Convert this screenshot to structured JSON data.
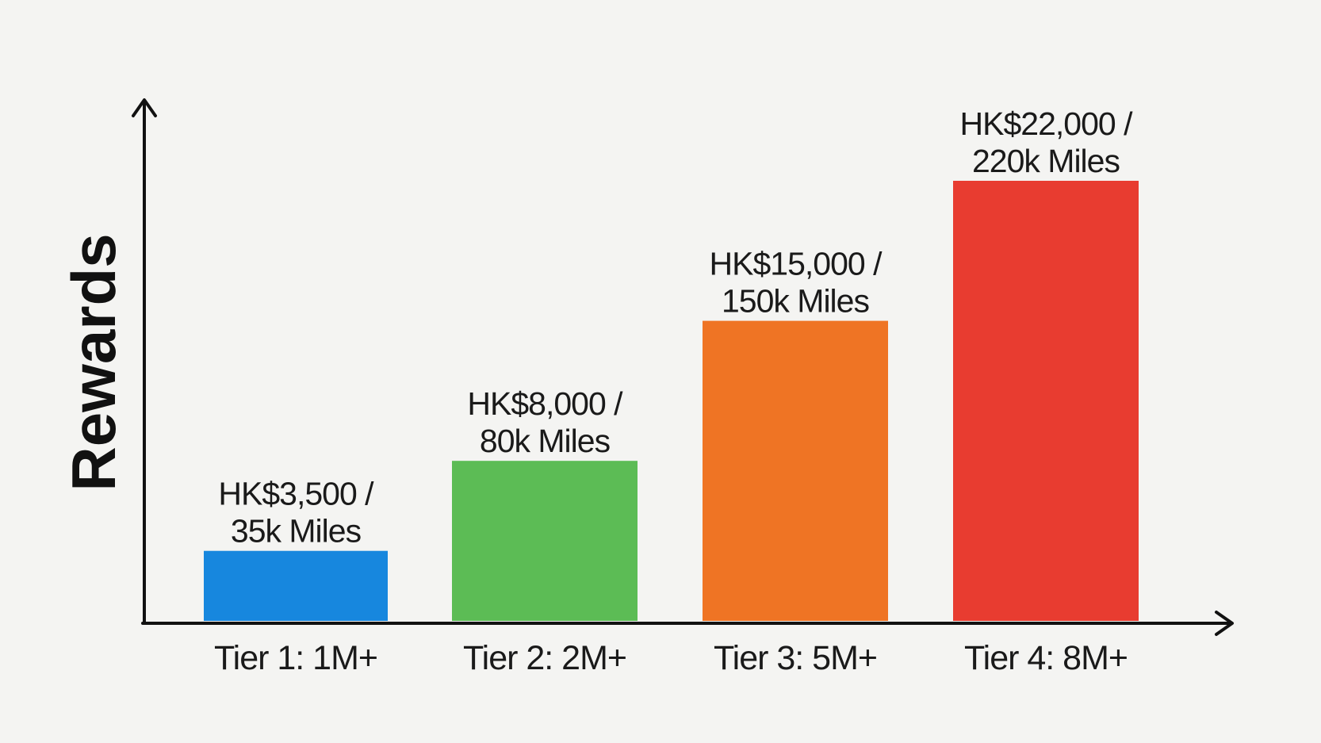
{
  "chart_data": {
    "type": "bar",
    "title": "",
    "xlabel": "",
    "ylabel": "Rewards",
    "categories": [
      "Tier 1: 1M+",
      "Tier 2: 2M+",
      "Tier 3: 5M+",
      "Tier 4: 8M+"
    ],
    "values": [
      3500,
      8000,
      15000,
      22000
    ],
    "value_unit": "HK$",
    "miles": [
      "35k",
      "80k",
      "150k",
      "220k"
    ],
    "data_labels": [
      [
        "HK$3,500 /",
        "35k Miles"
      ],
      [
        "HK$8,000 /",
        "80k Miles"
      ],
      [
        "HK$15,000 /",
        "150k Miles"
      ],
      [
        "HK$22,000 /",
        "220k Miles"
      ]
    ],
    "colors": [
      "#1787de",
      "#5cbc55",
      "#ef7424",
      "#e83c30"
    ],
    "ylim": [
      0,
      22000
    ],
    "y_ticks_shown": false,
    "grid": false,
    "legend": "none"
  }
}
